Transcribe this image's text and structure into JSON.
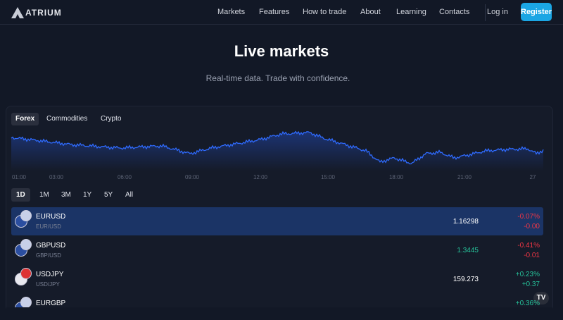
{
  "header": {
    "logo": "ATRIUM",
    "nav": [
      "Markets",
      "Features",
      "How to trade",
      "About",
      "Learning",
      "Contacts"
    ],
    "login": "Log in",
    "register": "Register"
  },
  "hero": {
    "title": "Live markets",
    "subtitle": "Real-time data. Trade with confidence."
  },
  "tabs": [
    "Forex",
    "Commodities",
    "Crypto"
  ],
  "time_labels": [
    "01:00",
    "03:00",
    "06:00",
    "09:00",
    "12:00",
    "15:00",
    "18:00",
    "21:00",
    "27"
  ],
  "ranges": [
    "1D",
    "1M",
    "3M",
    "1Y",
    "5Y",
    "All"
  ],
  "rows": [
    {
      "symbol": "EURUSD",
      "pair": "EUR/USD",
      "price": "1.16298",
      "change_pct": "-0.07%",
      "change": "-0.00"
    },
    {
      "symbol": "GBPUSD",
      "pair": "GBP/USD",
      "price": "1.3445",
      "change_pct": "-0.41%",
      "change": "-0.01"
    },
    {
      "symbol": "USDJPY",
      "pair": "USD/JPY",
      "price": "159.273",
      "change_pct": "+0.23%",
      "change": "+0.37"
    },
    {
      "symbol": "EURGBP",
      "change_pct": "+0.36%"
    }
  ]
}
